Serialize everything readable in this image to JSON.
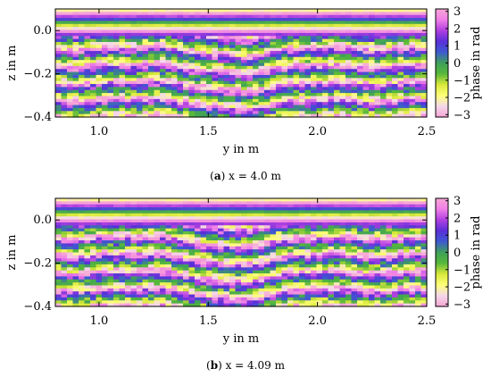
{
  "chart_data": [
    {
      "type": "heatmap",
      "panel_id": "a",
      "caption_letter": "a",
      "caption_text": "x = 4.0 m",
      "xlabel": "y in m",
      "ylabel": "z in m",
      "colorbar_label": "phase in rad",
      "xlim": [
        0.8,
        2.5
      ],
      "ylim": [
        -0.4,
        0.1
      ],
      "xticks": [
        1.0,
        1.5,
        2.0,
        2.5
      ],
      "xtick_labels": [
        "1.0",
        "1.5",
        "2.0",
        "2.5"
      ],
      "yticks": [
        0.0,
        -0.2,
        -0.4
      ],
      "ytick_labels": [
        "0.0",
        "−0.2",
        "−0.4"
      ],
      "clim": [
        -3.14,
        3.14
      ],
      "cticks": [
        3,
        2,
        1,
        0,
        -1,
        -2,
        -3
      ],
      "ctick_labels": [
        "3",
        "2",
        "1",
        "0",
        "−1",
        "−2",
        "−3"
      ],
      "colormap": [
        "#f7a6d5",
        "#f4d8ea",
        "#ffff77",
        "#d9e83a",
        "#56b83a",
        "#3fa05a",
        "#3d5bd1",
        "#5a2fd8",
        "#b03fe0",
        "#f07fe8"
      ],
      "bump_center_y": 1.65,
      "bump_height": 0.035,
      "band_period": 0.08,
      "seed": 7
    },
    {
      "type": "heatmap",
      "panel_id": "b",
      "caption_letter": "b",
      "caption_text": "x = 4.09 m",
      "xlabel": "y in m",
      "ylabel": "z in m",
      "colorbar_label": "phase in rad",
      "xlim": [
        0.8,
        2.5
      ],
      "ylim": [
        -0.4,
        0.1
      ],
      "xticks": [
        1.0,
        1.5,
        2.0,
        2.5
      ],
      "xtick_labels": [
        "1.0",
        "1.5",
        "2.0",
        "2.5"
      ],
      "yticks": [
        0.0,
        -0.2,
        -0.4
      ],
      "ytick_labels": [
        "0.0",
        "−0.2",
        "−0.4"
      ],
      "clim": [
        -3.14,
        3.14
      ],
      "cticks": [
        3,
        2,
        1,
        0,
        -1,
        -2,
        -3
      ],
      "ctick_labels": [
        "3",
        "2",
        "1",
        "0",
        "−1",
        "−2",
        "−3"
      ],
      "colormap": [
        "#f7a6d5",
        "#f4d8ea",
        "#ffff77",
        "#d9e83a",
        "#56b83a",
        "#3fa05a",
        "#3d5bd1",
        "#5a2fd8",
        "#b03fe0",
        "#f07fe8"
      ],
      "bump_center_y": 1.63,
      "bump_height": 0.04,
      "band_period": 0.08,
      "seed": 19
    }
  ]
}
